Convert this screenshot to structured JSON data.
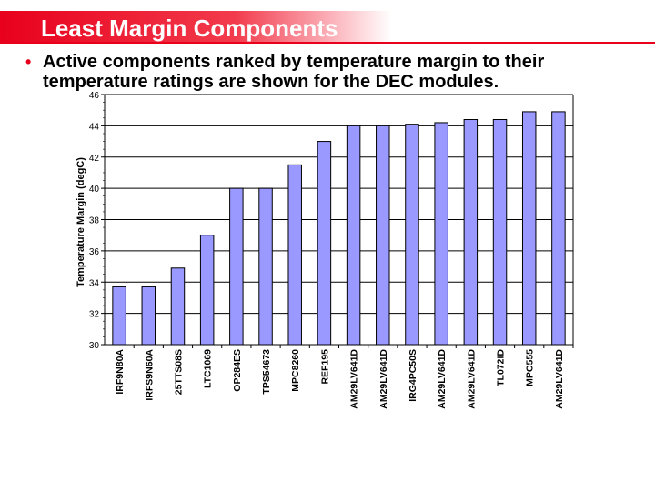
{
  "slide": {
    "title": "Least Margin Components",
    "bullet": "Active components ranked by temperature margin to their temperature ratings are shown for the DEC modules."
  },
  "colors": {
    "accent_red": "#e8001c",
    "bar_fill": "#9999ff",
    "bar_stroke": "#000000"
  },
  "chart_data": {
    "type": "bar",
    "title": "",
    "xlabel": "",
    "ylabel": "Temperature Margin (degC)",
    "ylim": [
      30,
      46
    ],
    "yticks": [
      30,
      32,
      34,
      36,
      38,
      40,
      42,
      44,
      46
    ],
    "grid": true,
    "categories": [
      "IRF9N80A",
      "IRFS9N60A",
      "25TTS08S",
      "LTC1069",
      "OP284ES",
      "TPS54673",
      "MPC8260",
      "REF195",
      "AM29LV641D",
      "AM29LV641D",
      "IRG4PC50S",
      "AM29LV641D",
      "AM29LV641D",
      "TL072ID",
      "MPC555",
      "AM29LV641D"
    ],
    "values": [
      33.7,
      33.7,
      34.9,
      37.0,
      40.0,
      40.0,
      41.5,
      43.0,
      44.0,
      44.0,
      44.1,
      44.2,
      44.4,
      44.4,
      44.9,
      44.9
    ]
  }
}
